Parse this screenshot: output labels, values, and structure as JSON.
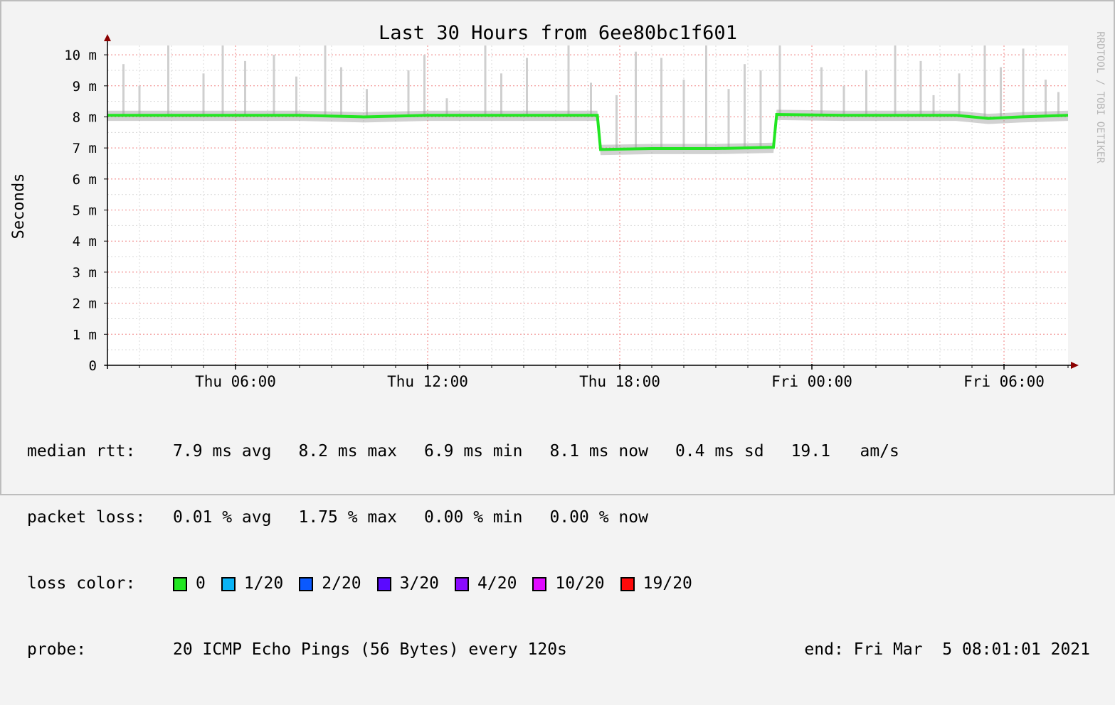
{
  "chart_data": {
    "type": "line",
    "title": "Last 30 Hours from 6ee80bc1f601",
    "ylabel": "Seconds",
    "xlabel": "",
    "watermark": "RRDTOOL / TOBI OETIKER",
    "ylim": [
      0,
      10.3
    ],
    "y_ticks": [
      {
        "v": 0,
        "label": "0"
      },
      {
        "v": 1,
        "label": "1 m"
      },
      {
        "v": 2,
        "label": "2 m"
      },
      {
        "v": 3,
        "label": "3 m"
      },
      {
        "v": 4,
        "label": "4 m"
      },
      {
        "v": 5,
        "label": "5 m"
      },
      {
        "v": 6,
        "label": "6 m"
      },
      {
        "v": 7,
        "label": "7 m"
      },
      {
        "v": 8,
        "label": "8 m"
      },
      {
        "v": 9,
        "label": "9 m"
      },
      {
        "v": 10,
        "label": "10 m"
      }
    ],
    "xlim_hours": [
      0,
      30
    ],
    "x_ticks": [
      {
        "h": 4,
        "label": "Thu 06:00"
      },
      {
        "h": 10,
        "label": "Thu 12:00"
      },
      {
        "h": 16,
        "label": "Thu 18:00"
      },
      {
        "h": 22,
        "label": "Fri 00:00"
      },
      {
        "h": 28,
        "label": "Fri 06:00"
      }
    ],
    "grid": true,
    "series": [
      {
        "name": "median rtt",
        "color": "#22e622",
        "x_hours": [
          0,
          2,
          4,
          6,
          8,
          10,
          12,
          14,
          15.3,
          15.4,
          17,
          19,
          20.8,
          20.9,
          23,
          25,
          26.5,
          27.5,
          28.5,
          30
        ],
        "values": [
          8.05,
          8.05,
          8.05,
          8.05,
          8.0,
          8.05,
          8.05,
          8.05,
          8.05,
          6.95,
          6.98,
          6.98,
          7.02,
          8.08,
          8.05,
          8.05,
          8.05,
          7.95,
          8.0,
          8.05
        ]
      }
    ],
    "spikes_hours": [
      0.5,
      1.0,
      1.9,
      3.0,
      3.6,
      4.3,
      5.2,
      5.9,
      6.8,
      7.3,
      8.1,
      9.4,
      9.9,
      10.6,
      11.8,
      12.3,
      13.1,
      14.4,
      15.1,
      15.9,
      16.5,
      17.3,
      18.0,
      18.7,
      19.4,
      19.9,
      20.4,
      21.0,
      22.3,
      23.0,
      23.7,
      24.6,
      25.4,
      25.8,
      26.6,
      27.4,
      27.9,
      28.6,
      29.3,
      29.7
    ],
    "spike_heights": [
      9.7,
      9.0,
      10.3,
      9.4,
      10.3,
      9.8,
      10.0,
      9.3,
      10.3,
      9.6,
      8.9,
      9.5,
      10.0,
      8.6,
      10.3,
      9.4,
      9.9,
      10.3,
      9.1,
      8.7,
      10.1,
      9.9,
      9.2,
      10.3,
      8.9,
      9.7,
      9.5,
      10.3,
      9.6,
      9.0,
      9.5,
      10.3,
      9.8,
      8.7,
      9.4,
      10.3,
      9.6,
      10.2,
      9.2,
      8.8
    ]
  },
  "legend": {
    "median_rtt": {
      "label": "median rtt:",
      "avg": "7.9 ms avg",
      "max": "8.2 ms max",
      "min": "6.9 ms min",
      "now": "8.1 ms now",
      "sd": "0.4 ms sd",
      "amps": "19.1   am/s"
    },
    "packet_loss": {
      "label": "packet loss:",
      "avg": "0.01 % avg",
      "max": "1.75 % max",
      "min": "0.00 % min",
      "now": "0.00 % now"
    },
    "loss_color": {
      "label": "loss color:",
      "items": [
        {
          "label": "0",
          "color": "#22e622"
        },
        {
          "label": "1/20",
          "color": "#0ab3f5"
        },
        {
          "label": "2/20",
          "color": "#0a59ff"
        },
        {
          "label": "3/20",
          "color": "#5a0aff"
        },
        {
          "label": "4/20",
          "color": "#8a0aff"
        },
        {
          "label": "10/20",
          "color": "#e00aff"
        },
        {
          "label": "19/20",
          "color": "#ff0a0a"
        }
      ]
    },
    "probe": {
      "label": "probe:",
      "text": "20 ICMP Echo Pings (56 Bytes) every 120s",
      "end": "end: Fri Mar  5 08:01:01 2021"
    }
  }
}
